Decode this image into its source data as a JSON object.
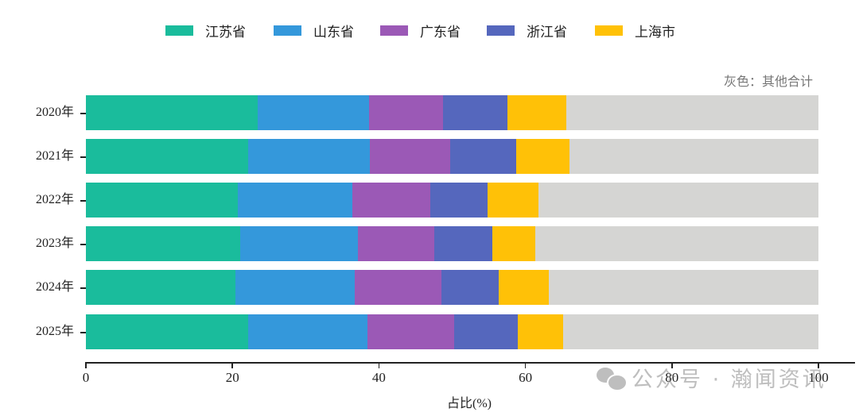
{
  "chart_data": {
    "type": "bar",
    "orientation": "horizontal",
    "stacked": true,
    "title": "",
    "xlabel": "占比(%)",
    "ylabel": "",
    "xlim": [
      0,
      100
    ],
    "xticks": [
      0,
      20,
      40,
      60,
      80,
      100
    ],
    "categories": [
      "2020年",
      "2021年",
      "2022年",
      "2023年",
      "2024年",
      "2025年"
    ],
    "series": [
      {
        "name": "江苏省",
        "color": "#1abc9c",
        "values": [
          23.4,
          22.2,
          20.7,
          21.1,
          20.4,
          22.2
        ]
      },
      {
        "name": "山东省",
        "color": "#3498db",
        "values": [
          15.3,
          16.6,
          15.7,
          16.0,
          16.3,
          16.2
        ]
      },
      {
        "name": "广东省",
        "color": "#9b59b6",
        "values": [
          10.1,
          10.9,
          10.6,
          10.5,
          11.8,
          11.9
        ]
      },
      {
        "name": "浙江省",
        "color": "#5567bd",
        "values": [
          8.7,
          9.0,
          7.8,
          7.9,
          7.9,
          8.7
        ]
      },
      {
        "name": "上海市",
        "color": "#ffc107",
        "values": [
          8.1,
          7.3,
          7.0,
          5.8,
          6.8,
          6.1
        ]
      },
      {
        "name": "其他合计",
        "color": "#d5d5d3",
        "values": [
          34.4,
          34.0,
          38.2,
          38.7,
          36.8,
          34.9
        ]
      }
    ],
    "annotations": [
      "灰色：其他合计"
    ],
    "legend_position": "top",
    "grid": false
  },
  "legend": [
    {
      "label": "江苏省",
      "color": "#1abc9c"
    },
    {
      "label": "山东省",
      "color": "#3498db"
    },
    {
      "label": "广东省",
      "color": "#9b59b6"
    },
    {
      "label": "浙江省",
      "color": "#5567bd"
    },
    {
      "label": "上海市",
      "color": "#ffc107"
    }
  ],
  "note": "灰色：其他合计",
  "xaxis": {
    "label": "占比(%)",
    "ticks": [
      "0",
      "20",
      "40",
      "60",
      "80",
      "100"
    ]
  },
  "yaxis": {
    "ticks": [
      "2020年",
      "2021年",
      "2022年",
      "2023年",
      "2024年",
      "2025年"
    ]
  },
  "watermark": {
    "icon": "wechat-icon",
    "text": "公众号 · 瀚闻资讯"
  }
}
